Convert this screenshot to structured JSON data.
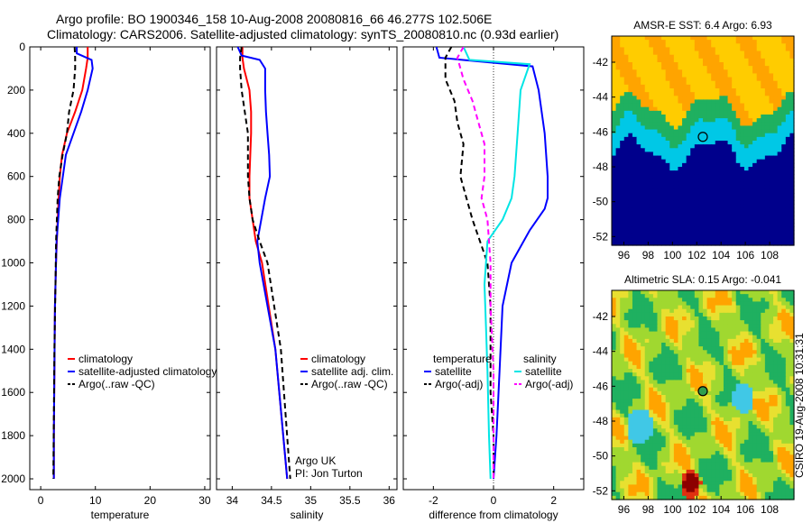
{
  "figure": {
    "title_line1": "Argo profile: BO 1900346_158 10-Aug-2008 20080816_66 46.277S 102.506E",
    "title_line2": "Climatology: CARS2006. Satellite-adjusted climatology: synTS_20080810.nc (0.93d earlier)",
    "side_text": "CSIRO 19-Aug-2008 10:31:31",
    "colors": {
      "climatology": "#ff0000",
      "satellite": "#0000ff",
      "argo": "#000000",
      "salinity_satellite": "#00e5e5",
      "salinity_argo": "#ff00ff"
    }
  },
  "chart_data": [
    {
      "type": "line",
      "xlabel": "temperature",
      "ylabel": "",
      "xlim": [
        -2,
        31
      ],
      "ylim": [
        2050,
        0
      ],
      "xticks": [
        0,
        10,
        20,
        30
      ],
      "yticks": [
        0,
        200,
        400,
        600,
        800,
        1000,
        1200,
        1400,
        1600,
        1800,
        2000
      ],
      "legend": [
        {
          "label": "climatology",
          "key": "climatology"
        },
        {
          "label": "satellite-adjusted climatology",
          "key": "satellite"
        },
        {
          "label": "Argo(..raw -QC)",
          "key": "argo"
        }
      ],
      "series": [
        {
          "key": "climatology",
          "style": "solid",
          "x": [
            8.6,
            8.6,
            8.3,
            7.6,
            6.3,
            4.8,
            3.9,
            3.5,
            3.1,
            2.8,
            2.6,
            2.5,
            2.4,
            2.4
          ],
          "y": [
            0,
            50,
            100,
            200,
            300,
            400,
            500,
            600,
            800,
            1000,
            1200,
            1500,
            1800,
            2000
          ]
        },
        {
          "key": "satellite",
          "style": "solid",
          "x": [
            6.6,
            6.6,
            9.3,
            9.5,
            8.6,
            7.4,
            6.0,
            4.6,
            3.5,
            2.9,
            2.6,
            2.5,
            2.4,
            2.4
          ],
          "y": [
            0,
            30,
            60,
            100,
            200,
            300,
            400,
            500,
            700,
            900,
            1200,
            1500,
            1800,
            2000
          ]
        },
        {
          "key": "argo",
          "style": "dash",
          "x": [
            6.2,
            6.3,
            6.3,
            6.0,
            5.2,
            4.8,
            4.0,
            3.4,
            3.1,
            2.8,
            2.7,
            2.5,
            2.4,
            2.3
          ],
          "y": [
            0,
            50,
            100,
            200,
            300,
            400,
            500,
            600,
            700,
            900,
            1100,
            1400,
            1700,
            2000
          ]
        }
      ]
    },
    {
      "type": "line",
      "xlabel": "salinity",
      "ylabel": "",
      "xlim": [
        33.8,
        36.1
      ],
      "ylim": [
        2050,
        0
      ],
      "xticks": [
        34,
        34.5,
        35,
        35.5,
        36
      ],
      "yticks": [],
      "legend": [
        {
          "label": "climatology",
          "key": "climatology"
        },
        {
          "label": "satellite adj. clim.",
          "key": "satellite"
        },
        {
          "label": "Argo(..raw -QC)",
          "key": "argo"
        }
      ],
      "annotations": [
        "Argo UK",
        "PI: Jon Turton"
      ],
      "series": [
        {
          "key": "climatology",
          "style": "solid",
          "x": [
            34.13,
            34.13,
            34.15,
            34.22,
            34.24,
            34.24,
            34.23,
            34.22,
            34.22,
            34.26,
            34.3,
            34.38,
            34.55,
            34.7
          ],
          "y": [
            0,
            50,
            100,
            200,
            300,
            400,
            500,
            600,
            700,
            800,
            900,
            1000,
            1400,
            2000
          ]
        },
        {
          "key": "satellite",
          "style": "solid",
          "x": [
            34.07,
            34.12,
            34.35,
            34.42,
            34.42,
            34.43,
            34.45,
            34.47,
            34.48,
            34.42,
            34.32,
            34.35,
            34.55,
            34.7
          ],
          "y": [
            0,
            40,
            60,
            100,
            200,
            300,
            400,
            500,
            600,
            700,
            900,
            1000,
            1400,
            2000
          ]
        },
        {
          "key": "argo",
          "style": "dash",
          "x": [
            34.12,
            34.1,
            34.1,
            34.12,
            34.16,
            34.2,
            34.2,
            34.2,
            34.22,
            34.26,
            34.35,
            34.45,
            34.62,
            34.74
          ],
          "y": [
            0,
            50,
            100,
            200,
            300,
            400,
            500,
            600,
            700,
            800,
            900,
            1000,
            1400,
            2000
          ]
        }
      ]
    },
    {
      "type": "line",
      "xlabel": "difference from climatology",
      "ylabel": "",
      "xlim": [
        -3,
        3
      ],
      "ylim": [
        2050,
        0
      ],
      "xticks": [
        -2,
        0,
        2
      ],
      "yticks": [],
      "zero_line": true,
      "legend_groups": [
        {
          "title": "temperature",
          "items": [
            {
              "label": "satellite",
              "key": "satellite"
            },
            {
              "label": "Argo(-adj)",
              "key": "argo"
            }
          ]
        },
        {
          "title": "salinity",
          "items": [
            {
              "label": "satellite",
              "key": "salinity_satellite"
            },
            {
              "label": "Argo(-adj)",
              "key": "salinity_argo"
            }
          ]
        }
      ],
      "series": [
        {
          "key": "satellite",
          "style": "solid",
          "x": [
            -1.9,
            -1.8,
            1.3,
            1.5,
            1.7,
            1.8,
            1.8,
            1.7,
            1.2,
            0.6,
            0.3,
            0.2,
            0.1,
            0.0
          ],
          "y": [
            0,
            50,
            90,
            200,
            400,
            600,
            700,
            750,
            850,
            1000,
            1200,
            1500,
            1800,
            2000
          ]
        },
        {
          "key": "argo",
          "style": "dash",
          "x": [
            -1.4,
            -1.6,
            -1.6,
            -1.3,
            -1.2,
            -1.0,
            -1.1,
            -0.7,
            -0.2,
            -0.1,
            -0.1,
            -0.1,
            0.0,
            0.0
          ],
          "y": [
            0,
            50,
            150,
            250,
            350,
            450,
            600,
            800,
            1000,
            1200,
            1400,
            1600,
            1800,
            2000
          ]
        },
        {
          "key": "salinity_satellite",
          "style": "solid",
          "x": [
            -1.0,
            -0.8,
            1.2,
            0.9,
            0.8,
            0.7,
            0.6,
            0.3,
            -0.2,
            -0.3,
            -0.25,
            -0.2,
            -0.15,
            -0.1
          ],
          "y": [
            0,
            60,
            80,
            200,
            400,
            600,
            700,
            800,
            900,
            1100,
            1300,
            1500,
            1800,
            2000
          ]
        },
        {
          "key": "salinity_argo",
          "style": "dash",
          "x": [
            -1.0,
            -1.2,
            -1.0,
            -0.7,
            -0.5,
            -0.3,
            -0.3,
            -0.4,
            -0.2,
            -0.1,
            -0.1,
            0.0,
            0.0,
            0.0
          ],
          "y": [
            0,
            50,
            150,
            250,
            350,
            450,
            600,
            700,
            800,
            1000,
            1200,
            1500,
            1800,
            2000
          ]
        }
      ]
    },
    {
      "type": "heatmap",
      "title": "AMSR-E SST: 6.4  Argo: 6.93",
      "xticks": [
        96,
        98,
        100,
        102,
        104,
        106,
        108
      ],
      "yticks": [
        -42,
        -44,
        -46,
        -48,
        -50,
        -52
      ],
      "xlim": [
        95,
        110
      ],
      "ylim": [
        -52.5,
        -40.5
      ],
      "marker": {
        "lon": 102.5,
        "lat": -46.28
      },
      "marker_color": "#2e9e4e",
      "colors": [
        "#ffa400",
        "#ffcc00",
        "#1fb060",
        "#00c8e6",
        "#00008c"
      ]
    },
    {
      "type": "heatmap",
      "title": "Altimetric SLA: 0.15  Argo: -0.041",
      "xticks": [
        96,
        98,
        100,
        102,
        104,
        106,
        108
      ],
      "yticks": [
        -42,
        -44,
        -46,
        -48,
        -50,
        -52
      ],
      "xlim": [
        95,
        110
      ],
      "ylim": [
        -52.5,
        -40.5
      ],
      "marker": {
        "lon": 102.5,
        "lat": -46.28
      },
      "marker_color": "#2e9e4e",
      "colors": [
        "#a0d830",
        "#1fb060",
        "#40c8e6",
        "#e8e030",
        "#ffa400",
        "#e03010",
        "#8c0000"
      ]
    }
  ]
}
